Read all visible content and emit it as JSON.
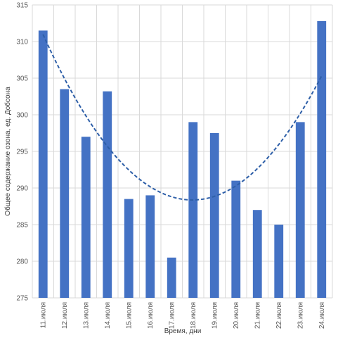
{
  "chart_data": {
    "type": "bar",
    "title": "",
    "xlabel": "Время, дни",
    "ylabel": "Общее содержание озона, ед. Добсона",
    "ylim": [
      275,
      315
    ],
    "ytick_step": 5,
    "grid": true,
    "legend": "none",
    "categories": [
      "11.июля",
      "12.июля",
      "13.июля",
      "14.июля",
      "15.июля",
      "16.июля",
      "17.июля",
      "18.июля",
      "19.июля",
      "20.июля",
      "21.июля",
      "22.июля",
      "23.июля",
      "24.июля"
    ],
    "series": [
      {
        "values": [
          311.5,
          303.5,
          297,
          303.2,
          288.5,
          289,
          280.5,
          299,
          297.5,
          291,
          287,
          285,
          299,
          312.8
        ],
        "color": "#4472C4"
      }
    ],
    "trendline": {
      "type": "polynomial",
      "order": 2,
      "style": "dashed",
      "color": "#2E5FA8"
    }
  }
}
